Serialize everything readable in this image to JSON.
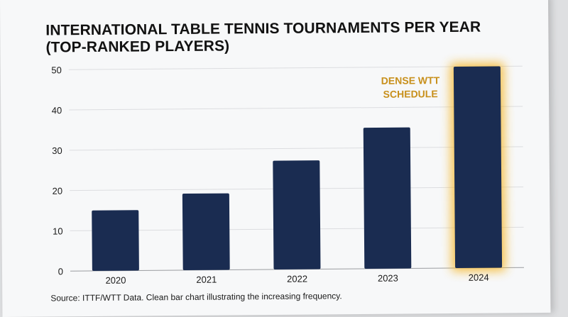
{
  "chart_data": {
    "type": "bar",
    "title_lines": [
      "INTERNATIONAL TABLE TENNIS TOURNAMENTS PER YEAR",
      "(TOP-RANKED PLAYERS)"
    ],
    "categories": [
      "2020",
      "2021",
      "2022",
      "2023",
      "2024"
    ],
    "values": [
      15,
      19,
      27,
      35,
      50
    ],
    "ylim": [
      0,
      50
    ],
    "yticks": [
      0,
      10,
      20,
      30,
      40,
      50
    ],
    "grid": true,
    "bar_color": "#1a2c51",
    "highlight_index": 4,
    "highlight_glow_color": "#f5b82e",
    "annotation": {
      "lines": [
        "DENSE WTT",
        "SCHEDULE"
      ],
      "color": "#c8901c",
      "category": "2024"
    },
    "source": "Source: ITTF/WTT Data. Clean bar chart illustrating the increasing frequency."
  }
}
